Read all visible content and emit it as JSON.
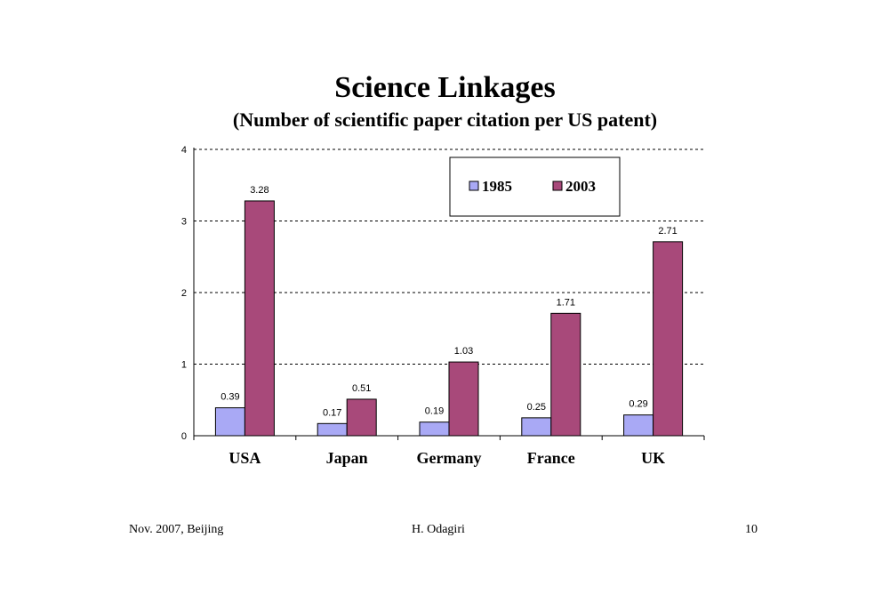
{
  "colors": {
    "series_1985": "#a9a9f5",
    "series_2003": "#a8497a"
  },
  "chart_data": {
    "type": "bar",
    "title": "Science Linkages",
    "subtitle": "(Number of scientific paper citation per US patent)",
    "categories": [
      "USA",
      "Japan",
      "Germany",
      "France",
      "UK"
    ],
    "series": [
      {
        "name": "1985",
        "values": [
          0.39,
          0.17,
          0.19,
          0.25,
          0.29
        ],
        "labels": [
          "0.39",
          "0.17",
          "0.19",
          "0.25",
          "0.29"
        ]
      },
      {
        "name": "2003",
        "values": [
          3.28,
          0.51,
          1.03,
          1.71,
          2.71
        ],
        "labels": [
          "3.28",
          "0.51",
          "1.03",
          "1.71",
          "2.71"
        ]
      }
    ],
    "ylim": [
      0,
      4
    ],
    "yticks": [
      "0",
      "1",
      "2",
      "3",
      "4"
    ],
    "grid": true,
    "legend_position": "top-right",
    "xlabel": "",
    "ylabel": ""
  },
  "footer": {
    "left": "Nov. 2007, Beijing",
    "center": "H. Odagiri",
    "right": "10"
  }
}
